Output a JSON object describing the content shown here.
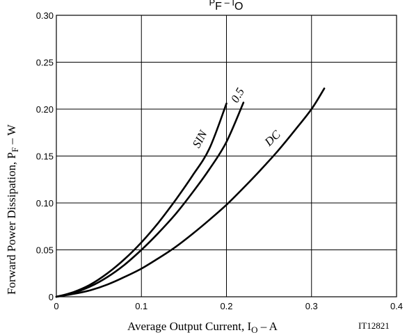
{
  "chart_data": {
    "type": "line",
    "title": {
      "main": "P",
      "main_sub": "F",
      "sep": " – ",
      "var": "I",
      "var_sub": "O"
    },
    "xlabel": {
      "text": "Average Output Current, I",
      "sub": "O",
      "suffix": " – A"
    },
    "ylabel": {
      "text": "Forward Power Dissipation, P",
      "sub": "F",
      "suffix": " – W"
    },
    "xlim": [
      0,
      0.4
    ],
    "ylim": [
      0,
      0.3
    ],
    "x_ticks": [
      "0",
      "0.1",
      "0.2",
      "0.3",
      "0.4"
    ],
    "y_ticks": [
      "0",
      "0.05",
      "0.10",
      "0.15",
      "0.20",
      "0.25",
      "0.30"
    ],
    "grid": true,
    "code": "IT12821",
    "series": [
      {
        "name": "SIN",
        "x": [
          0,
          0.02,
          0.04,
          0.06,
          0.08,
          0.1,
          0.12,
          0.14,
          0.16,
          0.18,
          0.2
        ],
        "y": [
          0,
          0.005,
          0.013,
          0.025,
          0.04,
          0.058,
          0.079,
          0.103,
          0.129,
          0.158,
          0.206
        ]
      },
      {
        "name": "0.5",
        "x": [
          0,
          0.02,
          0.04,
          0.06,
          0.08,
          0.1,
          0.12,
          0.14,
          0.16,
          0.18,
          0.2,
          0.22
        ],
        "y": [
          0,
          0.004,
          0.011,
          0.021,
          0.034,
          0.05,
          0.068,
          0.088,
          0.111,
          0.136,
          0.165,
          0.207
        ]
      },
      {
        "name": "DC",
        "x": [
          0,
          0.02,
          0.04,
          0.06,
          0.08,
          0.1,
          0.12,
          0.14,
          0.16,
          0.18,
          0.2,
          0.22,
          0.24,
          0.26,
          0.28,
          0.3,
          0.315
        ],
        "y": [
          0,
          0.003,
          0.007,
          0.013,
          0.021,
          0.03,
          0.041,
          0.053,
          0.067,
          0.082,
          0.098,
          0.116,
          0.135,
          0.155,
          0.177,
          0.2,
          0.222
        ]
      }
    ]
  }
}
